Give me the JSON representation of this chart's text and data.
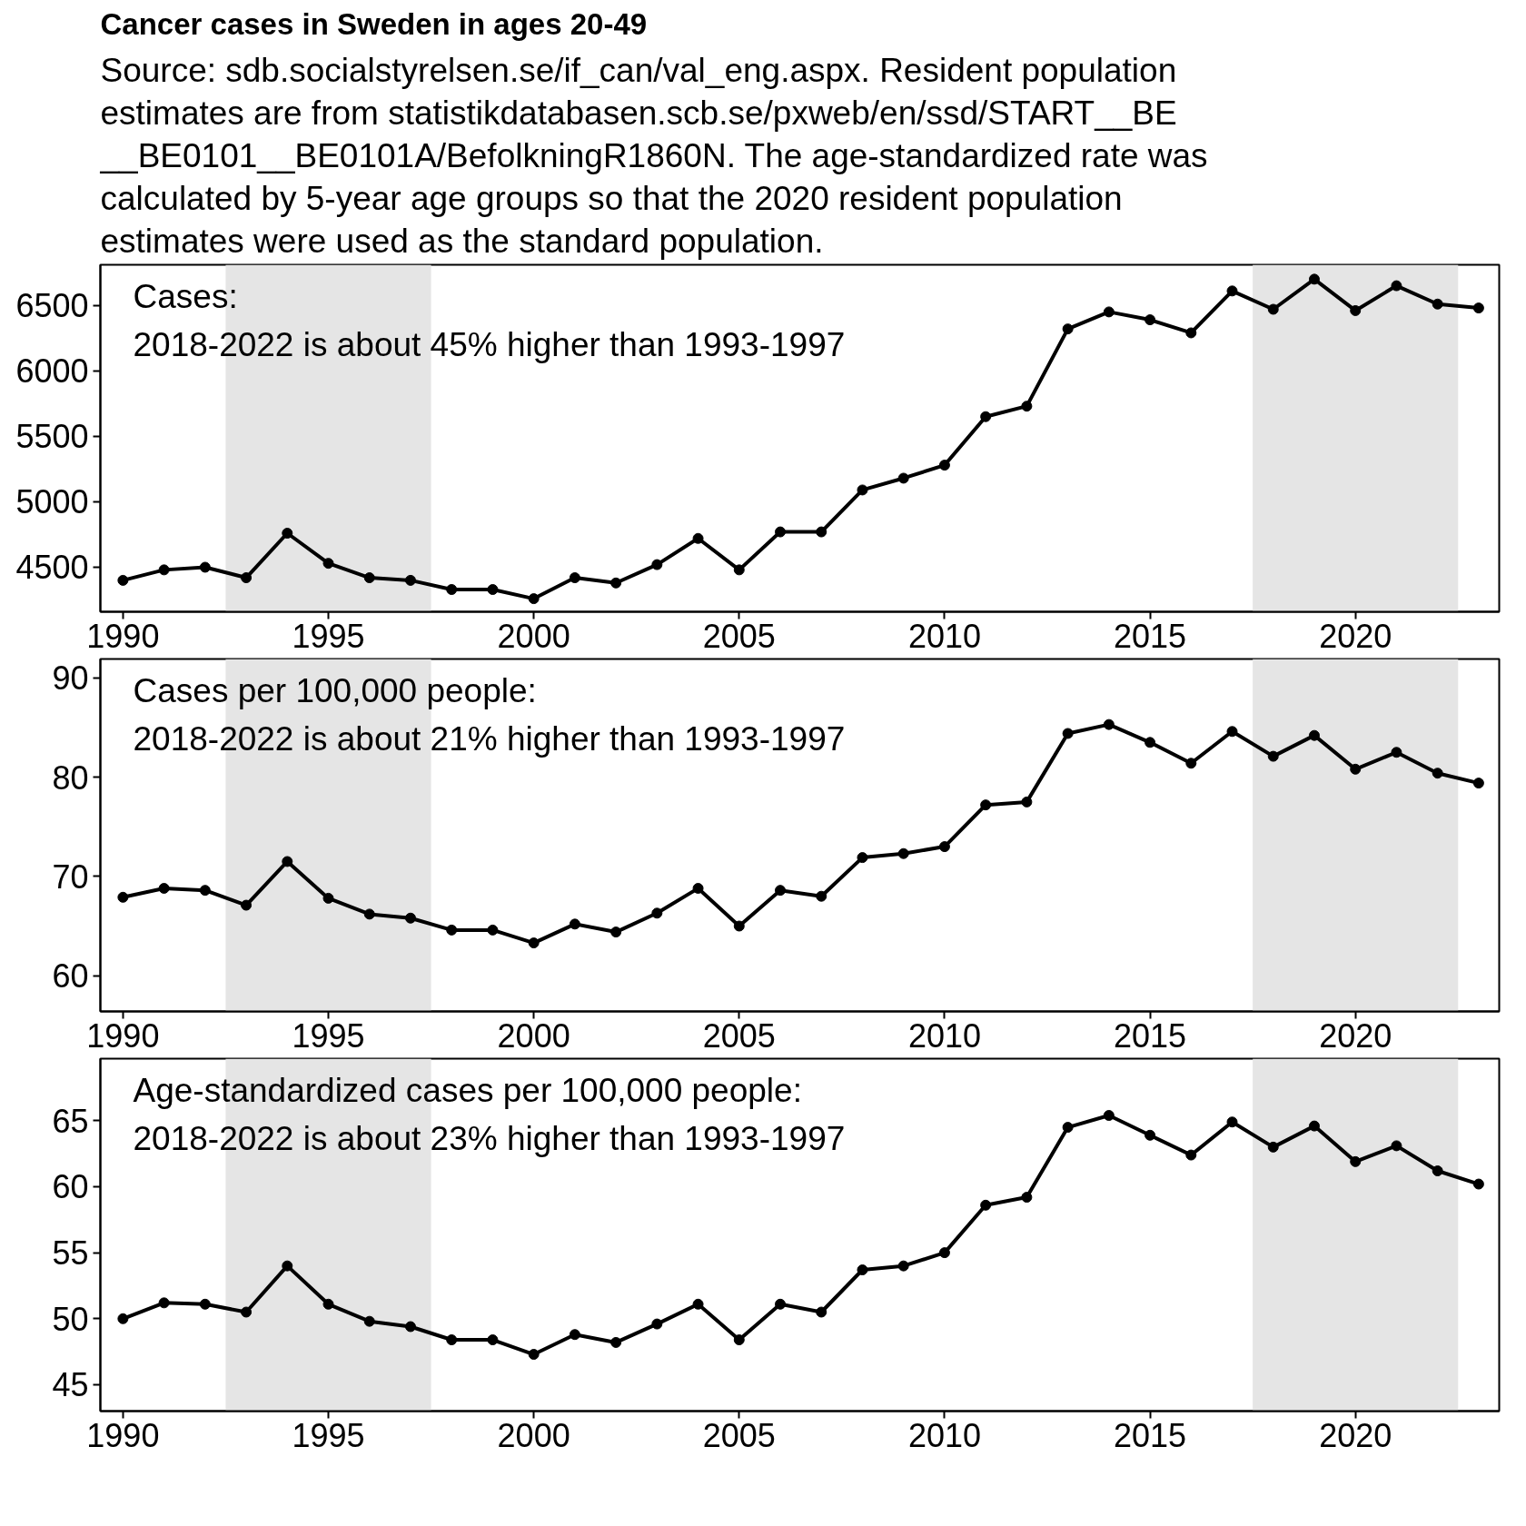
{
  "chart_data": [
    {
      "type": "line",
      "title": "Cancer cases in Sweden in ages 20-49",
      "subtitle": "Source: sdb.socialstyrelsen.se/if_can/val_eng.aspx. Resident population\nestimates are from statistikdatabasen.scb.se/pxweb/en/ssd/START__BE\n__BE0101__BE0101A/BefolkningR1860N. The age-standardized rate was\ncalculated by 5-year age groups so that the 2020 resident population\nestimates were used as the standard population.",
      "annotations": [
        "Cases:\n2018-2022 is about 45% higher than 1993-1997"
      ],
      "x": [
        1990,
        1991,
        1992,
        1993,
        1994,
        1995,
        1996,
        1997,
        1998,
        1999,
        2000,
        2001,
        2002,
        2003,
        2004,
        2005,
        2006,
        2007,
        2008,
        2009,
        2010,
        2011,
        2012,
        2013,
        2014,
        2015,
        2016,
        2017,
        2018,
        2019,
        2020,
        2021,
        2022,
        2023
      ],
      "series": [
        {
          "color": "#000000",
          "values": [
            4400,
            4480,
            4500,
            4420,
            4760,
            4530,
            4420,
            4400,
            4330,
            4330,
            4260,
            4420,
            4380,
            4520,
            4720,
            4480,
            4770,
            4770,
            5090,
            5180,
            5280,
            5650,
            5730,
            6320,
            6450,
            6390,
            6290,
            6610,
            6470,
            6700,
            6460,
            6650,
            6510,
            6480
          ]
        }
      ],
      "xlim": [
        1989.45,
        2023.5
      ],
      "ylim": [
        4160,
        6810
      ],
      "xticks": [
        1990,
        1995,
        2000,
        2005,
        2010,
        2015,
        2020
      ],
      "yticks": [
        4500,
        5000,
        5500,
        6000,
        6500
      ],
      "bands": [
        {
          "axis": "x",
          "from": 1992.5,
          "to": 1997.5,
          "color": "#e5e5e5"
        },
        {
          "axis": "x",
          "from": 2017.5,
          "to": 2022.5,
          "color": "#e5e5e5"
        }
      ],
      "marker": "circle",
      "line_style": "solid"
    },
    {
      "type": "line",
      "annotations": [
        "Cases per 100,000 people:\n2018-2022 is about 21% higher than 1993-1997"
      ],
      "x": [
        1990,
        1991,
        1992,
        1993,
        1994,
        1995,
        1996,
        1997,
        1998,
        1999,
        2000,
        2001,
        2002,
        2003,
        2004,
        2005,
        2006,
        2007,
        2008,
        2009,
        2010,
        2011,
        2012,
        2013,
        2014,
        2015,
        2016,
        2017,
        2018,
        2019,
        2020,
        2021,
        2022,
        2023
      ],
      "series": [
        {
          "color": "#000000",
          "values": [
            67.9,
            68.8,
            68.6,
            67.1,
            71.5,
            67.8,
            66.2,
            65.8,
            64.6,
            64.6,
            63.3,
            65.2,
            64.4,
            66.3,
            68.8,
            65.0,
            68.6,
            68.0,
            71.9,
            72.3,
            73.0,
            77.2,
            77.5,
            84.4,
            85.3,
            83.5,
            81.4,
            84.6,
            82.1,
            84.2,
            80.8,
            82.5,
            80.4,
            79.4
          ]
        }
      ],
      "xlim": [
        1989.45,
        2023.5
      ],
      "ylim": [
        56.4,
        91.9
      ],
      "xticks": [
        1990,
        1995,
        2000,
        2005,
        2010,
        2015,
        2020
      ],
      "yticks": [
        60,
        70,
        80,
        90
      ],
      "bands": [
        {
          "axis": "x",
          "from": 1992.5,
          "to": 1997.5,
          "color": "#e5e5e5"
        },
        {
          "axis": "x",
          "from": 2017.5,
          "to": 2022.5,
          "color": "#e5e5e5"
        }
      ],
      "marker": "circle",
      "line_style": "solid"
    },
    {
      "type": "line",
      "annotations": [
        "Age-standardized cases per 100,000 people:\n2018-2022 is about 23% higher than 1993-1997"
      ],
      "x": [
        1990,
        1991,
        1992,
        1993,
        1994,
        1995,
        1996,
        1997,
        1998,
        1999,
        2000,
        2001,
        2002,
        2003,
        2004,
        2005,
        2006,
        2007,
        2008,
        2009,
        2010,
        2011,
        2012,
        2013,
        2014,
        2015,
        2016,
        2017,
        2018,
        2019,
        2020,
        2021,
        2022,
        2023
      ],
      "series": [
        {
          "color": "#000000",
          "values": [
            50.0,
            51.2,
            51.1,
            50.5,
            54.0,
            51.1,
            49.8,
            49.4,
            48.4,
            48.4,
            47.3,
            48.8,
            48.2,
            49.6,
            51.1,
            48.4,
            51.1,
            50.5,
            53.7,
            54.0,
            55.0,
            58.6,
            59.2,
            64.5,
            65.4,
            63.9,
            62.4,
            64.9,
            63.0,
            64.6,
            61.9,
            63.1,
            61.2,
            60.2
          ]
        }
      ],
      "xlim": [
        1989.45,
        2023.5
      ],
      "ylim": [
        43.0,
        69.7
      ],
      "xticks": [
        1990,
        1995,
        2000,
        2005,
        2010,
        2015,
        2020
      ],
      "yticks": [
        45,
        50,
        55,
        60,
        65
      ],
      "bands": [
        {
          "axis": "x",
          "from": 1992.5,
          "to": 1997.5,
          "color": "#e5e5e5"
        },
        {
          "axis": "x",
          "from": 2017.5,
          "to": 2022.5,
          "color": "#e5e5e5"
        }
      ],
      "marker": "circle",
      "line_style": "solid"
    }
  ]
}
